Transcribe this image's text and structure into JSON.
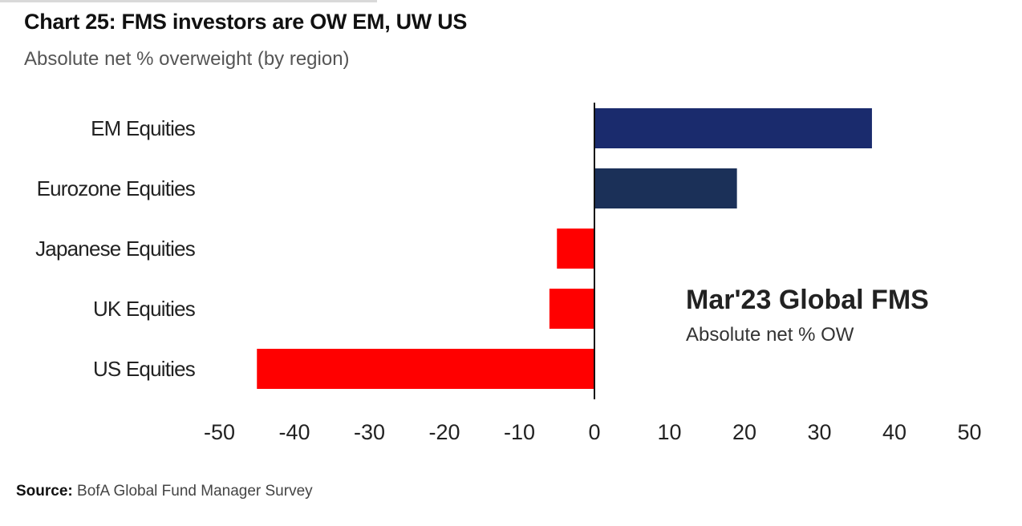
{
  "title": "Chart 25: FMS investors are OW EM, UW US",
  "subtitle": "Absolute net % overweight (by region)",
  "annotation": {
    "title": "Mar'23 Global FMS",
    "subtitle": "Absolute net % OW"
  },
  "source": {
    "label": "Source:",
    "text": "BofA Global Fund Manager Survey"
  },
  "chart_data": {
    "type": "bar",
    "orientation": "horizontal",
    "categories": [
      "EM Equities",
      "Eurozone Equities",
      "Japanese Equities",
      "UK Equities",
      "US Equities"
    ],
    "values": [
      37,
      19,
      -5,
      -6,
      -45
    ],
    "colors": [
      "#1a2b6d",
      "#1b3058",
      "#ff0000",
      "#ff0000",
      "#ff0000"
    ],
    "xlim": [
      -50,
      50
    ],
    "xticks": [
      -50,
      -40,
      -30,
      -20,
      -10,
      0,
      10,
      20,
      30,
      40,
      50
    ],
    "xlabel": "",
    "ylabel": "",
    "grid": false,
    "legend": "none"
  }
}
